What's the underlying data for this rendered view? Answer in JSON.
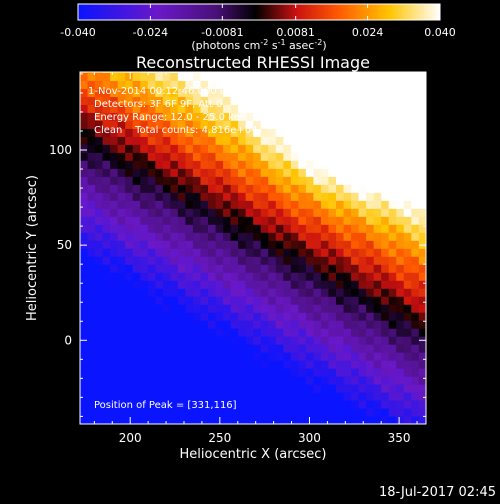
{
  "colorbar": {
    "tick_labels": [
      "-0.040",
      "-0.024",
      "-0.0081",
      "0.0081",
      "0.024",
      "0.040"
    ],
    "tick_values": [
      -0.04,
      -0.024,
      -0.0081,
      0.0081,
      0.024,
      0.04
    ],
    "range": [
      -0.04,
      0.04
    ],
    "units_prefix": "(photons cm",
    "units_exp1": "-2",
    "units_mid": " s",
    "units_exp2": "-1",
    "units_mid2": " asec",
    "units_exp3": "-2",
    "units_suffix": ")"
  },
  "annotations": {
    "time_range": "1-Nov-2014 00:12:46.000 to 00:22:46.000",
    "detectors": "Detectors: 3F 6F 9F, Att 0",
    "energy_range": "Energy Range: 12.0 - 25.0 keV",
    "clean_counts": "Clean    Total counts: 4.816e+04",
    "peak_position": "Position of Peak = [331,116]"
  },
  "timestamp": "18-Jul-2017 02:45",
  "colors": {
    "background": "#000000",
    "text": "#ffffff"
  },
  "chart_data": {
    "type": "heatmap",
    "title": "Reconstructed RHESSI Image",
    "xlabel": "Heliocentric X (arcsec)",
    "ylabel": "Heliocentric Y (arcsec)",
    "xlim": [
      172,
      365
    ],
    "ylim": [
      -44,
      141
    ],
    "x_ticks": [
      200,
      250,
      300,
      350
    ],
    "y_ticks": [
      0,
      50,
      100
    ],
    "x_tick_labels": [
      "200",
      "250",
      "300",
      "350"
    ],
    "y_tick_labels": [
      "0",
      "50",
      "100"
    ],
    "colormap": "Rainbow-like (blue → purple → black → red → orange → yellow → white)",
    "value_range": [
      -0.04,
      0.04
    ],
    "peak": [
      331,
      116
    ]
  }
}
